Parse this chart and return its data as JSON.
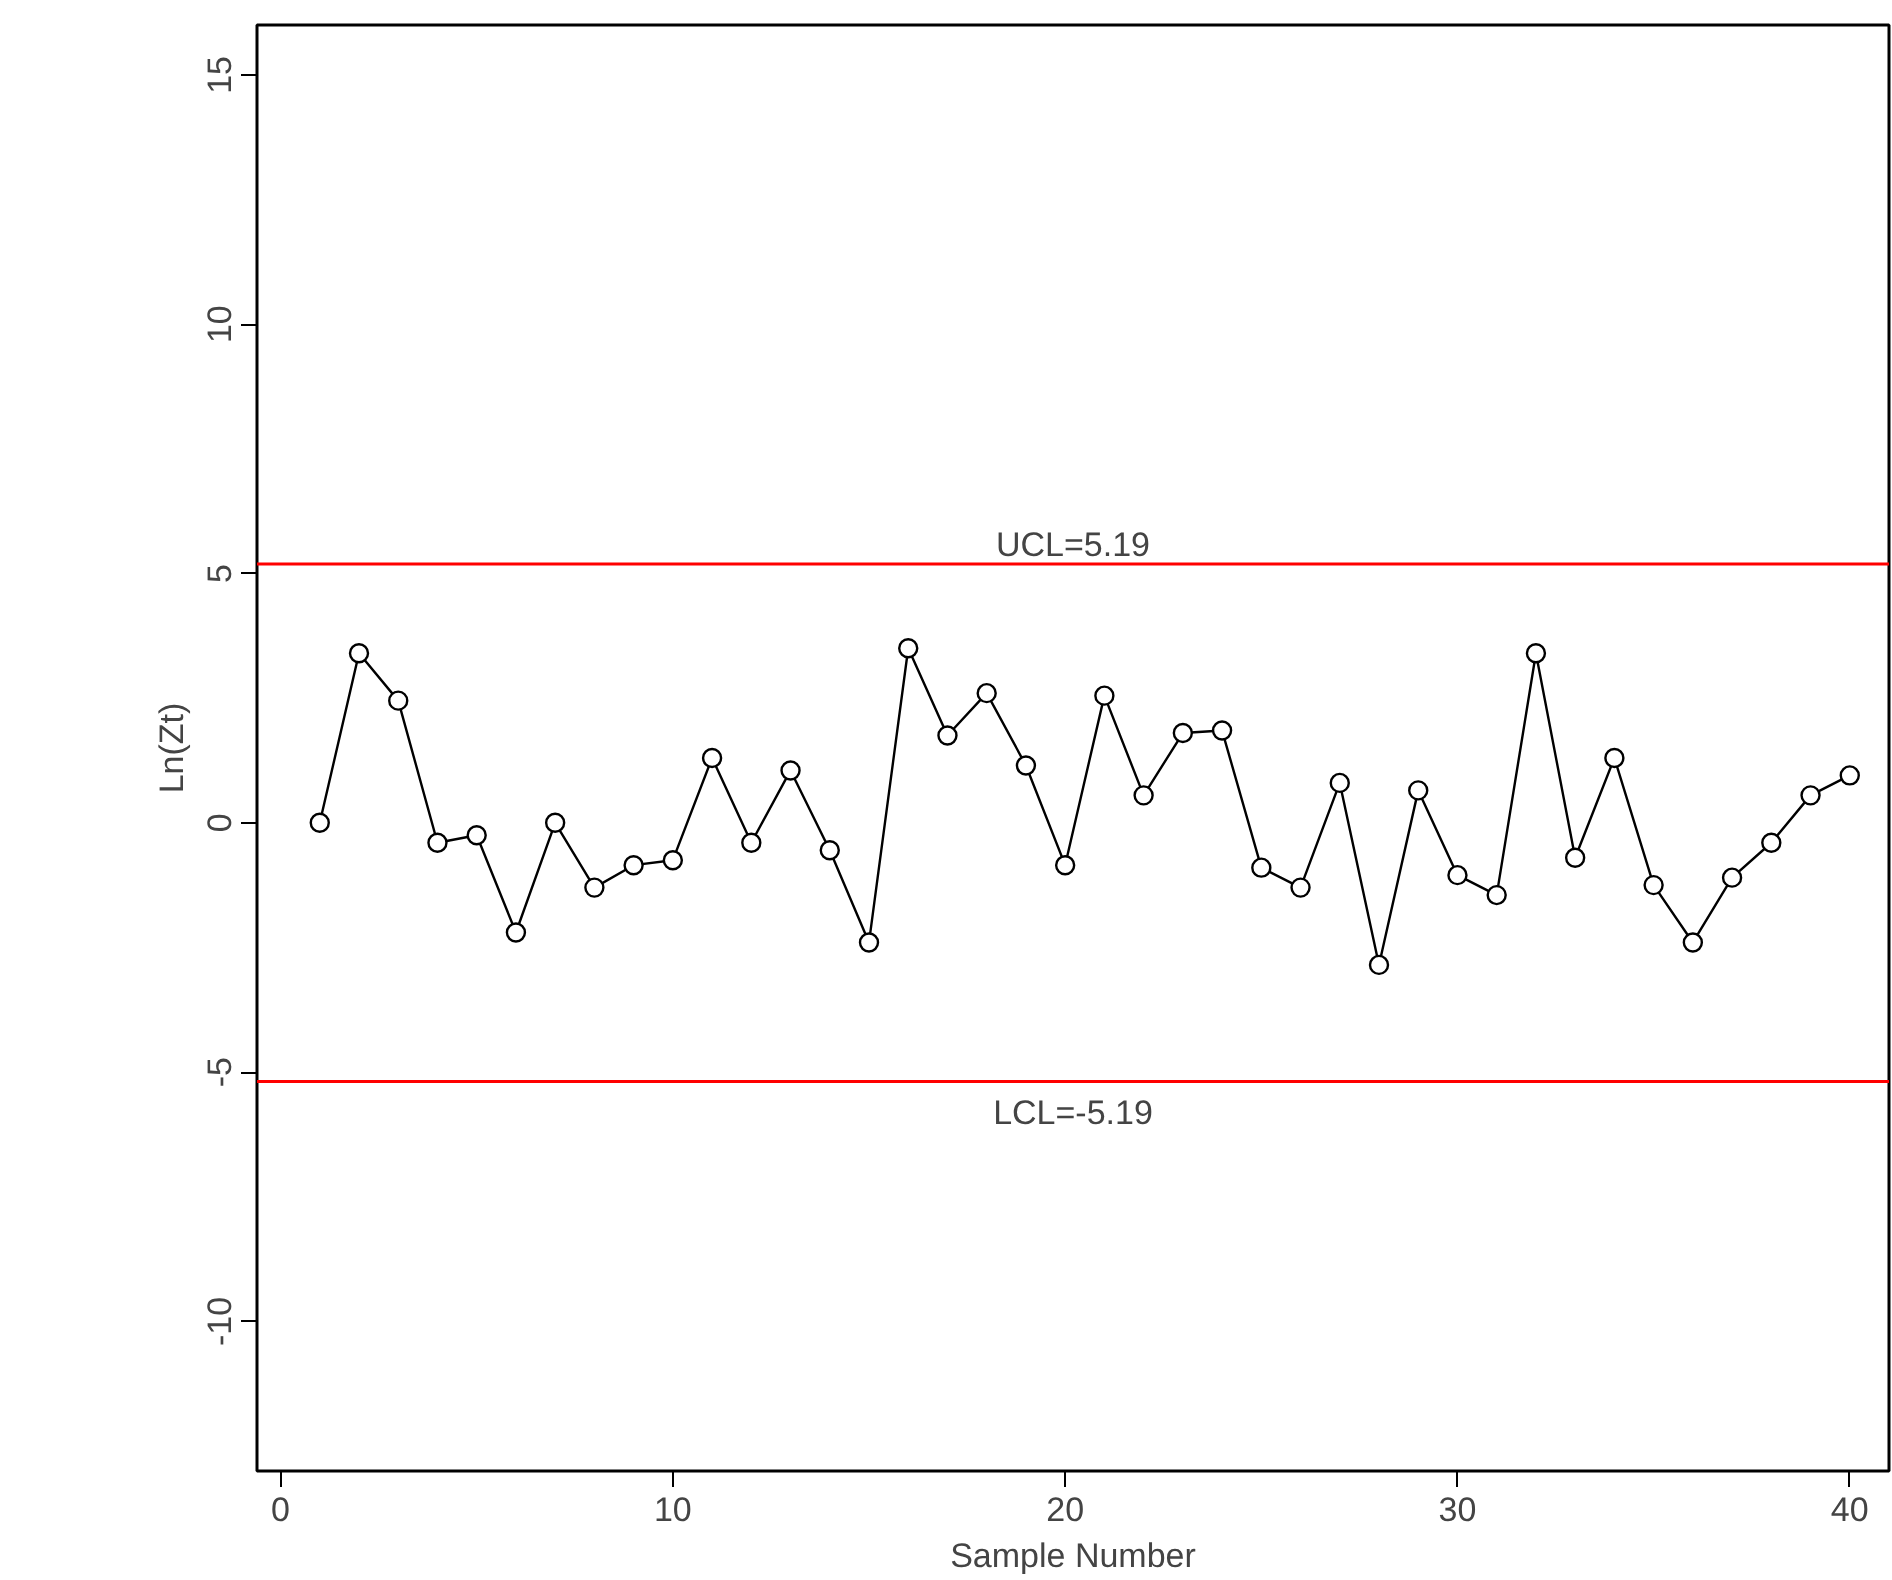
{
  "chart_data": {
    "type": "line",
    "xlabel": "Sample Number",
    "ylabel": "Ln(Zt)",
    "x": [
      1,
      2,
      3,
      4,
      5,
      6,
      7,
      8,
      9,
      10,
      11,
      12,
      13,
      14,
      15,
      16,
      17,
      18,
      19,
      20,
      21,
      22,
      23,
      24,
      25,
      26,
      27,
      28,
      29,
      30,
      31,
      32,
      33,
      34,
      35,
      36,
      37,
      38,
      39,
      40
    ],
    "series": [
      {
        "color": "#000000",
        "values": [
          0.0,
          3.4,
          2.45,
          -0.4,
          -0.25,
          -2.2,
          0.0,
          -1.3,
          -0.85,
          -0.75,
          1.3,
          -0.4,
          1.05,
          -0.55,
          -2.4,
          3.5,
          1.75,
          2.6,
          1.15,
          -0.85,
          2.55,
          0.55,
          1.8,
          1.85,
          -0.9,
          -1.3,
          0.8,
          -2.85,
          0.65,
          -1.05,
          -1.45,
          3.4,
          -0.7,
          1.3,
          -1.25,
          -2.4,
          -1.1,
          -0.4,
          0.55,
          0.95
        ]
      }
    ],
    "ref_lines": [
      {
        "axis": "y",
        "value": 5.19,
        "label": "UCL=5.19",
        "color": "#ff0000"
      },
      {
        "axis": "y",
        "value": -5.19,
        "label": "LCL=-5.19",
        "color": "#ff0000"
      }
    ],
    "xlim": [
      -0.6,
      41
    ],
    "ylim": [
      -13,
      16
    ],
    "xticks": [
      0,
      10,
      20,
      30,
      40
    ],
    "yticks": [
      -10,
      -5,
      0,
      5,
      10,
      15
    ],
    "marker": "circle",
    "line_style": "solid",
    "grid": false
  }
}
